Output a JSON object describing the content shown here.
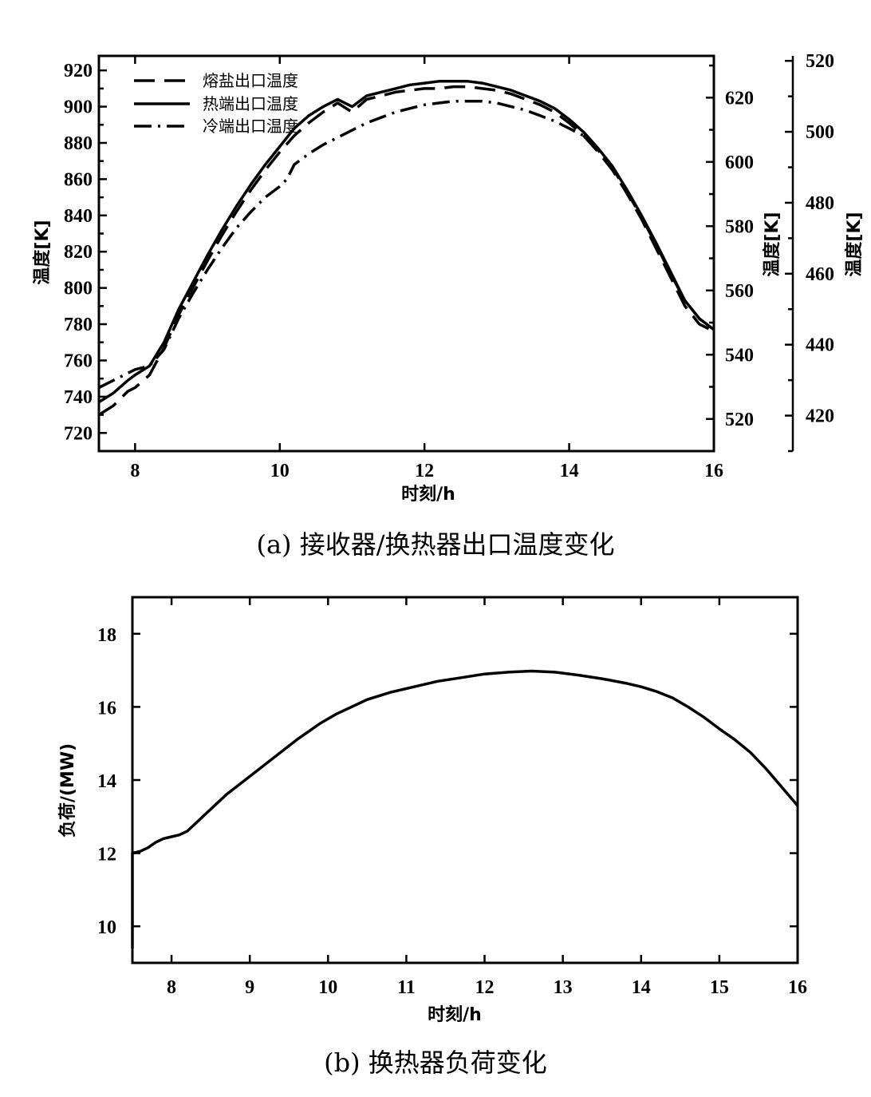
{
  "chart_data": [
    {
      "type": "line",
      "caption": "(a) 接收器/换热器出口温度变化",
      "xlabel": "时刻/h",
      "ylabel": "温度[K]",
      "y2label": "温度[K]",
      "y3label": "温度[K]",
      "xlim": [
        7.5,
        16
      ],
      "ylim": [
        710,
        928
      ],
      "y2lim": [
        510,
        633
      ],
      "y3lim": [
        410,
        521.4
      ],
      "xticks": [
        8,
        10,
        12,
        14,
        16
      ],
      "yticks": [
        720,
        740,
        760,
        780,
        800,
        820,
        840,
        860,
        880,
        900,
        920
      ],
      "y2ticks": [
        520,
        540,
        560,
        580,
        600,
        620
      ],
      "y3ticks": [
        420,
        440,
        460,
        480,
        500,
        520
      ],
      "legend_position": "top-left",
      "series": [
        {
          "name": "熔盐出口温度",
          "style": "dashed",
          "x": [
            7.5,
            7.7,
            7.9,
            8.0,
            8.2,
            8.4,
            8.6,
            8.8,
            9.0,
            9.2,
            9.4,
            9.6,
            9.8,
            10.0,
            10.2,
            10.4,
            10.6,
            10.8,
            11.0,
            11.2,
            11.4,
            11.6,
            11.8,
            12.0,
            12.2,
            12.4,
            12.6,
            12.8,
            13.0,
            13.2,
            13.4,
            13.6,
            13.8,
            14.0,
            14.2,
            14.4,
            14.6,
            14.8,
            15.0,
            15.2,
            15.4,
            15.6,
            15.8,
            16.0
          ],
          "values": [
            730,
            735,
            743,
            745,
            752,
            767,
            785,
            800,
            815,
            829,
            842,
            854,
            865,
            875,
            884,
            891,
            897,
            902,
            897,
            904,
            906,
            908,
            909,
            910,
            910,
            911,
            911,
            910,
            909,
            907,
            904,
            901,
            897,
            891,
            884,
            875,
            865,
            852,
            838,
            822,
            806,
            790,
            780,
            776
          ]
        },
        {
          "name": "热端出口温度",
          "style": "solid",
          "x": [
            7.5,
            7.7,
            7.9,
            8.0,
            8.2,
            8.4,
            8.6,
            8.8,
            9.0,
            9.2,
            9.4,
            9.6,
            9.8,
            10.0,
            10.2,
            10.4,
            10.6,
            10.8,
            11.0,
            11.2,
            11.4,
            11.6,
            11.8,
            12.0,
            12.2,
            12.4,
            12.6,
            12.8,
            13.0,
            13.2,
            13.4,
            13.6,
            13.8,
            14.0,
            14.2,
            14.4,
            14.6,
            14.8,
            15.0,
            15.2,
            15.4,
            15.6,
            15.8,
            16.0
          ],
          "values": [
            737,
            742,
            749,
            752,
            757,
            770,
            788,
            803,
            818,
            832,
            845,
            857,
            868,
            878,
            888,
            895,
            900,
            904,
            900,
            906,
            908,
            910,
            912,
            913,
            914,
            914,
            914,
            913,
            911,
            909,
            906,
            903,
            899,
            893,
            886,
            877,
            867,
            854,
            840,
            825,
            809,
            793,
            783,
            777
          ]
        },
        {
          "name": "冷端出口温度",
          "style": "dashdot",
          "x": [
            7.5,
            7.7,
            7.9,
            8.0,
            8.2,
            8.4,
            8.6,
            8.8,
            9.0,
            9.2,
            9.4,
            9.6,
            9.8,
            10.0,
            10.1,
            10.2,
            10.4,
            10.6,
            10.8,
            11.0,
            11.2,
            11.4,
            11.6,
            11.8,
            12.0,
            12.2,
            12.4,
            12.6,
            12.8,
            13.0,
            13.2,
            13.4,
            13.6,
            13.8,
            14.0,
            14.2,
            14.4,
            14.6,
            14.8,
            15.0,
            15.2,
            15.4,
            15.6,
            15.8,
            16.0
          ],
          "values": [
            745,
            749,
            753,
            755,
            757,
            766,
            783,
            797,
            810,
            822,
            833,
            842,
            850,
            856,
            860,
            868,
            874,
            879,
            883,
            887,
            891,
            894,
            897,
            899,
            901,
            902,
            903,
            903,
            903,
            902,
            900,
            898,
            895,
            892,
            888,
            884,
            876,
            866,
            853,
            839,
            824,
            808,
            793,
            783,
            777
          ]
        }
      ]
    },
    {
      "type": "line",
      "caption": "(b) 换热器负荷变化",
      "xlabel": "时刻/h",
      "ylabel": "负荷/(MW)",
      "xlim": [
        7.5,
        16
      ],
      "ylim": [
        9,
        19
      ],
      "xticks": [
        8,
        9,
        10,
        11,
        12,
        13,
        14,
        15,
        16
      ],
      "yticks": [
        10,
        12,
        14,
        16,
        18
      ],
      "series": [
        {
          "style": "solid",
          "x": [
            7.5,
            7.5,
            7.6,
            7.7,
            7.8,
            7.9,
            8.0,
            8.1,
            8.2,
            8.3,
            8.5,
            8.7,
            9.0,
            9.3,
            9.6,
            9.9,
            10.1,
            10.3,
            10.5,
            10.8,
            11.1,
            11.4,
            11.7,
            12.0,
            12.3,
            12.6,
            12.9,
            13.2,
            13.5,
            13.8,
            14.0,
            14.2,
            14.4,
            14.6,
            14.8,
            15.0,
            15.2,
            15.4,
            15.6,
            15.8,
            16.0
          ],
          "values": [
            9.4,
            12.0,
            12.05,
            12.15,
            12.3,
            12.4,
            12.45,
            12.5,
            12.6,
            12.8,
            13.2,
            13.6,
            14.1,
            14.6,
            15.1,
            15.55,
            15.8,
            16.0,
            16.2,
            16.4,
            16.55,
            16.7,
            16.8,
            16.9,
            16.95,
            16.98,
            16.95,
            16.87,
            16.77,
            16.65,
            16.55,
            16.42,
            16.25,
            16.0,
            15.72,
            15.4,
            15.1,
            14.75,
            14.3,
            13.8,
            13.3
          ]
        }
      ]
    }
  ]
}
